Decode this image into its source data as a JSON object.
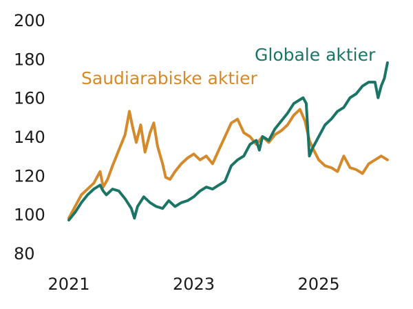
{
  "chart_data": {
    "type": "line",
    "title": "",
    "xlabel": "",
    "ylabel": "",
    "ylim": [
      80,
      200
    ],
    "xlim": [
      2021.0,
      2026.2
    ],
    "grid": false,
    "legend": "inline labels",
    "y_ticks": [
      80,
      100,
      120,
      140,
      160,
      180,
      200
    ],
    "x_ticks": [
      {
        "value": 2021,
        "label": "2021"
      },
      {
        "value": 2023,
        "label": "2023"
      },
      {
        "value": 2025,
        "label": "2025"
      }
    ],
    "series": [
      {
        "name": "Saudiarabiske aktier",
        "color": "#D4892A",
        "x": [
          2021.0,
          2021.1,
          2021.2,
          2021.3,
          2021.4,
          2021.5,
          2021.55,
          2021.62,
          2021.7,
          2021.8,
          2021.9,
          2021.97,
          2022.02,
          2022.08,
          2022.15,
          2022.22,
          2022.3,
          2022.36,
          2022.42,
          2022.5,
          2022.55,
          2022.62,
          2022.7,
          2022.8,
          2022.9,
          2023.0,
          2023.1,
          2023.2,
          2023.3,
          2023.4,
          2023.5,
          2023.6,
          2023.7,
          2023.8,
          2023.9,
          2024.0,
          2024.1,
          2024.2,
          2024.3,
          2024.4,
          2024.5,
          2024.6,
          2024.7,
          2024.78,
          2024.85,
          2024.92,
          2025.0,
          2025.1,
          2025.2,
          2025.3,
          2025.4,
          2025.5,
          2025.6,
          2025.7,
          2025.8,
          2025.9,
          2026.0,
          2026.1
        ],
        "y": [
          98,
          104,
          110,
          113,
          116,
          122,
          114,
          118,
          125,
          133,
          141,
          153,
          145,
          137,
          146,
          132,
          142,
          147,
          135,
          126,
          119,
          118,
          122,
          126,
          129,
          131,
          128,
          130,
          126,
          133,
          140,
          147,
          149,
          142,
          140,
          136,
          140,
          137,
          141,
          143,
          146,
          151,
          154,
          148,
          138,
          133,
          128,
          125,
          124,
          122,
          130,
          124,
          123,
          121,
          126,
          128,
          130,
          128
        ]
      },
      {
        "name": "Globale aktier",
        "color": "#1A7566",
        "x": [
          2021.0,
          2021.1,
          2021.2,
          2021.3,
          2021.4,
          2021.5,
          2021.55,
          2021.6,
          2021.7,
          2021.8,
          2021.9,
          2022.0,
          2022.05,
          2022.1,
          2022.2,
          2022.3,
          2022.4,
          2022.5,
          2022.6,
          2022.7,
          2022.8,
          2022.9,
          2023.0,
          2023.1,
          2023.2,
          2023.3,
          2023.4,
          2023.5,
          2023.6,
          2023.7,
          2023.8,
          2023.9,
          2024.0,
          2024.05,
          2024.1,
          2024.2,
          2024.3,
          2024.4,
          2024.5,
          2024.6,
          2024.7,
          2024.75,
          2024.8,
          2024.85,
          2024.9,
          2025.0,
          2025.1,
          2025.2,
          2025.3,
          2025.4,
          2025.5,
          2025.6,
          2025.7,
          2025.8,
          2025.9,
          2025.95,
          2026.0,
          2026.05,
          2026.1
        ],
        "y": [
          97,
          101,
          106,
          110,
          113,
          115,
          112,
          110,
          113,
          112,
          108,
          103,
          98,
          104,
          109,
          106,
          104,
          103,
          107,
          104,
          106,
          107,
          109,
          112,
          114,
          113,
          115,
          117,
          125,
          128,
          130,
          136,
          138,
          133,
          140,
          138,
          144,
          148,
          152,
          157,
          159,
          160,
          157,
          130,
          134,
          140,
          146,
          149,
          153,
          155,
          160,
          162,
          166,
          168,
          168,
          160,
          166,
          170,
          178
        ]
      }
    ]
  }
}
